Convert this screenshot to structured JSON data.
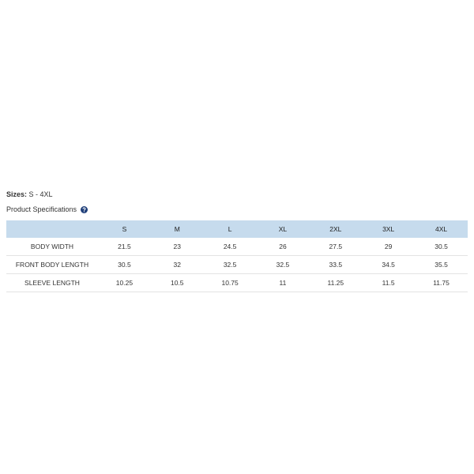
{
  "sizes": {
    "label": "Sizes:",
    "value": "S - 4XL"
  },
  "specifications": {
    "title": "Product Specifications"
  },
  "table": {
    "header": [
      "S",
      "M",
      "L",
      "XL",
      "2XL",
      "3XL",
      "4XL"
    ],
    "rows": [
      {
        "label": "BODY WIDTH",
        "values": [
          "21.5",
          "23",
          "24.5",
          "26",
          "27.5",
          "29",
          "30.5"
        ]
      },
      {
        "label": "FRONT BODY LENGTH",
        "values": [
          "30.5",
          "32",
          "32.5",
          "32.5",
          "33.5",
          "34.5",
          "35.5"
        ]
      },
      {
        "label": "SLEEVE LENGTH",
        "values": [
          "10.25",
          "10.5",
          "10.75",
          "11",
          "11.25",
          "11.5",
          "11.75"
        ]
      }
    ]
  }
}
